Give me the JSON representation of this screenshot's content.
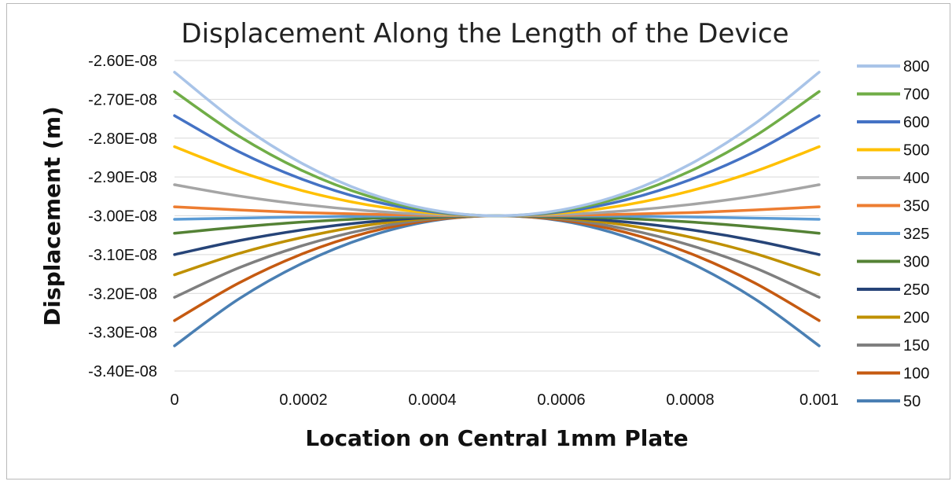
{
  "chart_data": {
    "type": "line",
    "title": "Displacement Along the Length of the Device",
    "xlabel": "Location on Central 1mm  Plate",
    "ylabel": "Displacement (m)",
    "xlim": [
      0,
      0.001
    ],
    "ylim": [
      -3.4e-08,
      -2.6e-08
    ],
    "xticks": [
      "0",
      "0.0002",
      "0.0004",
      "0.0006",
      "0.0008",
      "0.001"
    ],
    "yticks": [
      "-2.60E-08",
      "-2.70E-08",
      "-2.80E-08",
      "-2.90E-08",
      "-3.00E-08",
      "-3.10E-08",
      "-3.20E-08",
      "-3.30E-08",
      "-3.40E-08"
    ],
    "grid": "horizontal",
    "legend_position": "right",
    "x": [
      0,
      0.0001,
      0.0002,
      0.0003,
      0.0004,
      0.0005,
      0.0006,
      0.0007,
      0.0008,
      0.0009,
      0.001
    ],
    "series": [
      {
        "name": "800",
        "color": "#a9c4e8",
        "values": [
          -2.63e-08,
          -2.763e-08,
          -2.867e-08,
          -2.941e-08,
          -2.985e-08,
          -3e-08,
          -2.985e-08,
          -2.941e-08,
          -2.867e-08,
          -2.763e-08,
          -2.63e-08
        ]
      },
      {
        "name": "700",
        "color": "#70ad47",
        "values": [
          -2.68e-08,
          -2.795e-08,
          -2.885e-08,
          -2.949e-08,
          -2.987e-08,
          -3e-08,
          -2.987e-08,
          -2.949e-08,
          -2.885e-08,
          -2.795e-08,
          -2.68e-08
        ]
      },
      {
        "name": "600",
        "color": "#4472c4",
        "values": [
          -2.742e-08,
          -2.835e-08,
          -2.907e-08,
          -2.959e-08,
          -2.99e-08,
          -3e-08,
          -2.99e-08,
          -2.959e-08,
          -2.907e-08,
          -2.835e-08,
          -2.742e-08
        ]
      },
      {
        "name": "500",
        "color": "#ffc000",
        "values": [
          -2.822e-08,
          -2.886e-08,
          -2.936e-08,
          -2.972e-08,
          -2.993e-08,
          -3e-08,
          -2.993e-08,
          -2.972e-08,
          -2.936e-08,
          -2.886e-08,
          -2.822e-08
        ]
      },
      {
        "name": "400",
        "color": "#a5a5a5",
        "values": [
          -2.92e-08,
          -2.949e-08,
          -2.971e-08,
          -2.987e-08,
          -2.997e-08,
          -3e-08,
          -2.997e-08,
          -2.987e-08,
          -2.971e-08,
          -2.949e-08,
          -2.92e-08
        ]
      },
      {
        "name": "350",
        "color": "#ed7d31",
        "values": [
          -2.977e-08,
          -2.985e-08,
          -2.992e-08,
          -2.996e-08,
          -2.999e-08,
          -3e-08,
          -2.999e-08,
          -2.996e-08,
          -2.992e-08,
          -2.985e-08,
          -2.977e-08
        ]
      },
      {
        "name": "325",
        "color": "#5b9bd5",
        "values": [
          -3.009e-08,
          -3.006e-08,
          -3.003e-08,
          -3.001e-08,
          -3e-08,
          -3e-08,
          -3e-08,
          -3.001e-08,
          -3.003e-08,
          -3.006e-08,
          -3.009e-08
        ]
      },
      {
        "name": "300",
        "color": "#548235",
        "values": [
          -3.045e-08,
          -3.029e-08,
          -3.016e-08,
          -3.007e-08,
          -3.002e-08,
          -3e-08,
          -3.002e-08,
          -3.007e-08,
          -3.016e-08,
          -3.029e-08,
          -3.045e-08
        ]
      },
      {
        "name": "250",
        "color": "#264478",
        "values": [
          -3.1e-08,
          -3.064e-08,
          -3.036e-08,
          -3.016e-08,
          -3.004e-08,
          -3e-08,
          -3.004e-08,
          -3.016e-08,
          -3.036e-08,
          -3.064e-08,
          -3.1e-08
        ]
      },
      {
        "name": "200",
        "color": "#bf9000",
        "values": [
          -3.152e-08,
          -3.097e-08,
          -3.055e-08,
          -3.024e-08,
          -3.006e-08,
          -3e-08,
          -3.006e-08,
          -3.024e-08,
          -3.055e-08,
          -3.097e-08,
          -3.152e-08
        ]
      },
      {
        "name": "150",
        "color": "#7f7f7f",
        "values": [
          -3.21e-08,
          -3.134e-08,
          -3.076e-08,
          -3.034e-08,
          -3.008e-08,
          -3e-08,
          -3.008e-08,
          -3.034e-08,
          -3.076e-08,
          -3.134e-08,
          -3.21e-08
        ]
      },
      {
        "name": "100",
        "color": "#c55a11",
        "values": [
          -3.27e-08,
          -3.173e-08,
          -3.097e-08,
          -3.043e-08,
          -3.011e-08,
          -3e-08,
          -3.011e-08,
          -3.043e-08,
          -3.097e-08,
          -3.173e-08,
          -3.27e-08
        ]
      },
      {
        "name": "50",
        "color": "#4a7fb3",
        "values": [
          -3.335e-08,
          -3.214e-08,
          -3.121e-08,
          -3.054e-08,
          -3.013e-08,
          -3e-08,
          -3.013e-08,
          -3.054e-08,
          -3.121e-08,
          -3.214e-08,
          -3.335e-08
        ]
      }
    ]
  }
}
